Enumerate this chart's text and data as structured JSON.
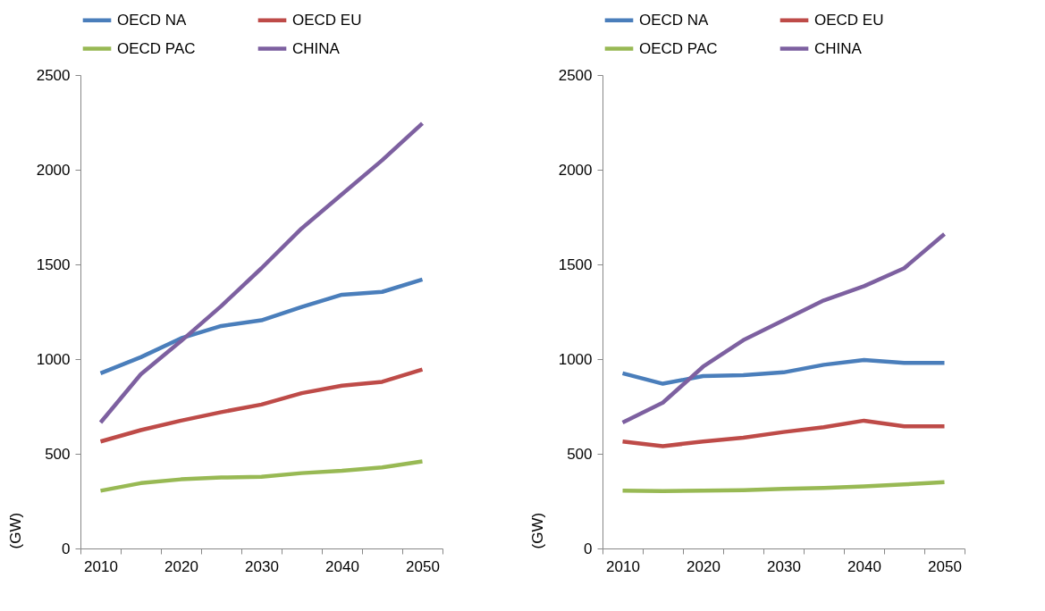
{
  "chart_data": [
    {
      "type": "line",
      "ylabel": "(GW)",
      "categories": [
        "2010",
        null,
        "2020",
        null,
        "2030",
        null,
        "2040",
        null,
        "2050"
      ],
      "ylim": [
        0,
        2500
      ],
      "yticks": [
        0,
        500,
        1000,
        1500,
        2000,
        2500
      ],
      "grid": false,
      "legend": "top",
      "marker": "none",
      "series": [
        {
          "name": "OECD NA",
          "color": "#4a7ebb",
          "values": [
            925,
            1010,
            1110,
            1175,
            1205,
            1275,
            1340,
            1355,
            1420
          ]
        },
        {
          "name": "OECD EU",
          "color": "#be4b48",
          "values": [
            565,
            625,
            675,
            720,
            760,
            820,
            860,
            880,
            945
          ]
        },
        {
          "name": "OECD PAC",
          "color": "#98b954",
          "values": [
            305,
            345,
            365,
            375,
            378,
            398,
            410,
            428,
            460
          ]
        },
        {
          "name": "CHINA",
          "color": "#7d60a0",
          "values": [
            665,
            920,
            1095,
            1280,
            1480,
            1690,
            1870,
            2050,
            2245
          ]
        }
      ]
    },
    {
      "type": "line",
      "ylabel": "(GW)",
      "categories": [
        "2010",
        null,
        "2020",
        null,
        "2030",
        null,
        "2040",
        null,
        "2050"
      ],
      "ylim": [
        0,
        2500
      ],
      "yticks": [
        0,
        500,
        1000,
        1500,
        2000,
        2500
      ],
      "grid": false,
      "legend": "top",
      "marker": "none",
      "series": [
        {
          "name": "OECD NA",
          "color": "#4a7ebb",
          "values": [
            925,
            870,
            910,
            915,
            930,
            970,
            995,
            980,
            980
          ]
        },
        {
          "name": "OECD EU",
          "color": "#be4b48",
          "values": [
            565,
            540,
            565,
            585,
            615,
            640,
            675,
            645,
            645
          ]
        },
        {
          "name": "OECD PAC",
          "color": "#98b954",
          "values": [
            305,
            303,
            305,
            308,
            315,
            320,
            328,
            338,
            350
          ]
        },
        {
          "name": "CHINA",
          "color": "#7d60a0",
          "values": [
            665,
            770,
            960,
            1100,
            1205,
            1310,
            1385,
            1480,
            1660
          ]
        }
      ]
    }
  ]
}
